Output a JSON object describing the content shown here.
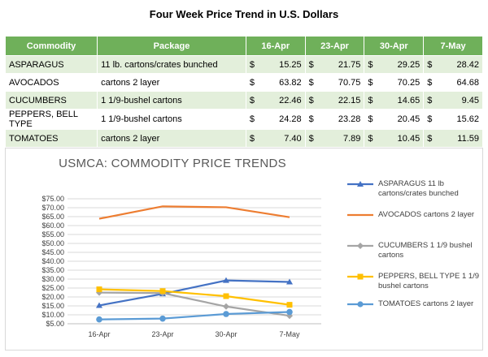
{
  "title": "Four Week Price Trend in U.S. Dollars",
  "table": {
    "headers": [
      "Commodity",
      "Package",
      "16-Apr",
      "23-Apr",
      "30-Apr",
      "7-May"
    ],
    "currency": "$",
    "rows": [
      {
        "commodity": "ASPARAGUS",
        "package": "11 lb. cartons/crates bunched",
        "prices": [
          "15.25",
          "21.75",
          "29.25",
          "28.42"
        ]
      },
      {
        "commodity": "AVOCADOS",
        "package": "cartons 2 layer",
        "prices": [
          "63.82",
          "70.75",
          "70.25",
          "64.68"
        ]
      },
      {
        "commodity": "CUCUMBERS",
        "package": "1 1/9-bushel cartons",
        "prices": [
          "22.46",
          "22.15",
          "14.65",
          "9.45"
        ]
      },
      {
        "commodity": "PEPPERS, BELL TYPE",
        "package": "1 1/9-bushel cartons",
        "prices": [
          "24.28",
          "23.28",
          "20.45",
          "15.62"
        ]
      },
      {
        "commodity": "TOMATOES",
        "package": "cartons 2 layer",
        "prices": [
          "7.40",
          "7.89",
          "10.45",
          "11.59"
        ]
      }
    ]
  },
  "chart_data": {
    "type": "line",
    "title": "USMCA: COMMODITY PRICE TRENDS",
    "x": [
      "16-Apr",
      "23-Apr",
      "30-Apr",
      "7-May"
    ],
    "ylim": [
      5,
      75
    ],
    "y_ticks": [
      "$5.00",
      "$10.00",
      "$15.00",
      "$20.00",
      "$25.00",
      "$30.00",
      "$35.00",
      "$40.00",
      "$45.00",
      "$50.00",
      "$55.00",
      "$60.00",
      "$65.00",
      "$70.00",
      "$75.00"
    ],
    "grid": true,
    "legend": "right",
    "series": [
      {
        "name": "ASPARAGUS 11 lb cartons/crates bunched",
        "values": [
          15.25,
          21.75,
          29.25,
          28.42
        ],
        "color": "#4472c4",
        "marker": "triangle"
      },
      {
        "name": "AVOCADOS cartons 2 layer",
        "values": [
          63.82,
          70.75,
          70.25,
          64.68
        ],
        "color": "#ed7d31",
        "marker": "none"
      },
      {
        "name": "CUCUMBERS 1 1/9 bushel cartons",
        "values": [
          22.46,
          22.15,
          14.65,
          9.45
        ],
        "color": "#a5a5a5",
        "marker": "diamond"
      },
      {
        "name": "PEPPERS, BELL TYPE 1 1/9 bushel cartons",
        "values": [
          24.28,
          23.28,
          20.45,
          15.62
        ],
        "color": "#ffc000",
        "marker": "square"
      },
      {
        "name": "TOMATOES cartons 2 layer",
        "values": [
          7.4,
          7.89,
          10.45,
          11.59
        ],
        "color": "#5b9bd5",
        "marker": "circle"
      }
    ]
  }
}
